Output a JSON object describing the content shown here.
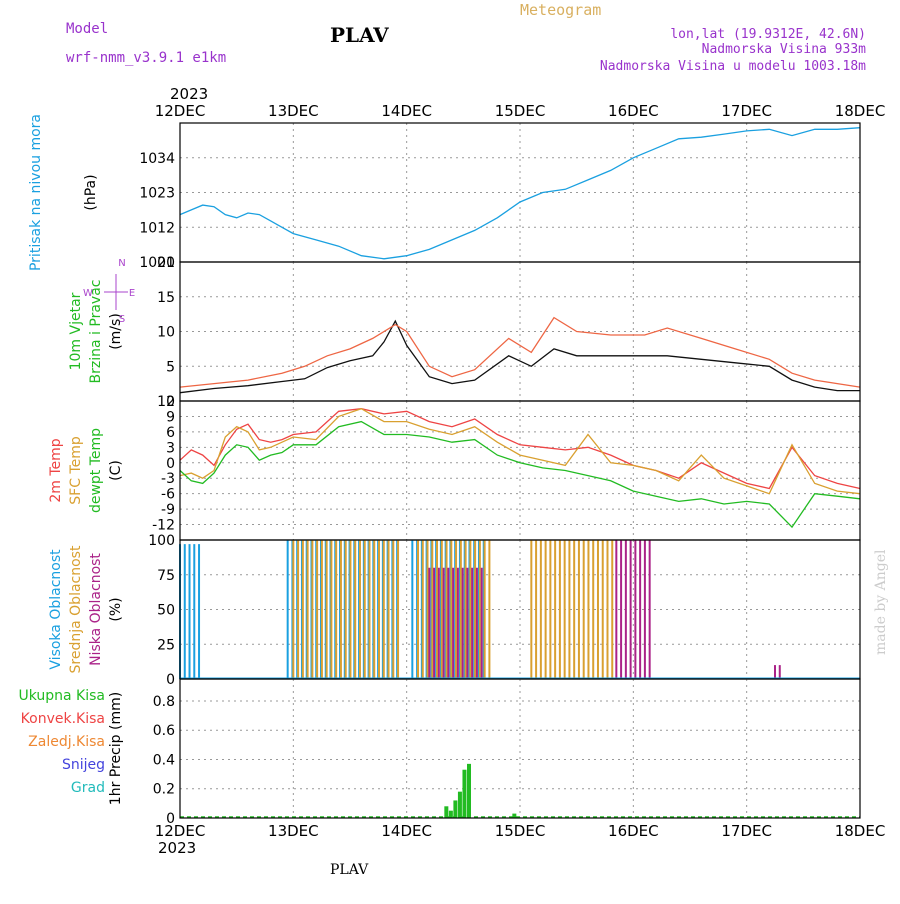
{
  "header": {
    "model_label": "Model",
    "model_name": "wrf-nmm_v3.9.1 e1km",
    "station": "PLAV",
    "meteogram": "Meteogram",
    "lonlat": "lon,lat (19.9312E, 42.6N)",
    "altitude": "Nadmorska Visina 933m",
    "model_altitude": "Nadmorska Visina u modelu 1003.18m",
    "year_top": "2023",
    "year_bottom": "2023",
    "footer_station": "PLAV",
    "credit": "made by Angel"
  },
  "colors": {
    "pressure": "#1aa0e0",
    "wind_lbl": "#22bb22",
    "wind_dir_lbl": "#aa44cc",
    "temp2m": "#ee4444",
    "sfc": "#d9a030",
    "dewpt": "#22bb22",
    "cloud_high": "#1aa0e0",
    "cloud_mid": "#d9a030",
    "cloud_low": "#aa2288",
    "rain_total": "#22bb22",
    "rain_conv": "#ee4444",
    "rain_frz": "#ee8833",
    "snow": "#4444dd",
    "graupel": "#22bbbb",
    "header_purple": "#9933cc",
    "header_tan": "#d9b060",
    "wind_speed": "#111111",
    "wind_gust": "#ee6644"
  },
  "chart_data": {
    "type": "line",
    "x_ticks": [
      "12DEC",
      "13DEC",
      "14DEC",
      "15DEC",
      "16DEC",
      "17DEC",
      "18DEC"
    ],
    "panels": [
      {
        "id": "pressure",
        "ylabel": [
          "Pritisak na nivou mora",
          "(hPa)"
        ],
        "ylim": [
          1001,
          1045
        ],
        "yticks": [
          1001,
          1012,
          1023,
          1034
        ],
        "series": [
          {
            "key": "pressure",
            "x": [
              0,
              0.1,
              0.2,
              0.3,
              0.4,
              0.5,
              0.6,
              0.7,
              0.8,
              0.9,
              1.0,
              1.2,
              1.4,
              1.6,
              1.8,
              2.0,
              2.2,
              2.4,
              2.6,
              2.8,
              3.0,
              3.2,
              3.4,
              3.6,
              3.8,
              4.0,
              4.2,
              4.4,
              4.6,
              4.8,
              5.0,
              5.2,
              5.4,
              5.6,
              5.8,
              6.0
            ],
            "y": [
              1016,
              1017.5,
              1019,
              1018.5,
              1016,
              1015,
              1016.5,
              1016,
              1014,
              1012,
              1010,
              1008,
              1006,
              1003,
              1002,
              1003,
              1005,
              1008,
              1011,
              1015,
              1020,
              1023,
              1024,
              1027,
              1030,
              1034,
              1037,
              1040,
              1040.5,
              1041.5,
              1042.5,
              1043,
              1041,
              1043,
              1043,
              1043.5
            ]
          }
        ]
      },
      {
        "id": "wind",
        "ylabel": [
          "10m Vjetar",
          "Brzina i Pravac",
          "(m/s)"
        ],
        "ylim": [
          0,
          20
        ],
        "yticks": [
          0,
          5,
          10,
          15,
          20
        ],
        "dir_legend": [
          "N",
          "E",
          "W",
          "S"
        ],
        "series": [
          {
            "key": "wind_speed",
            "x": [
              0,
              0.3,
              0.6,
              0.9,
              1.1,
              1.3,
              1.5,
              1.7,
              1.8,
              1.9,
              2.0,
              2.2,
              2.4,
              2.6,
              2.9,
              3.1,
              3.3,
              3.5,
              3.8,
              4.1,
              4.3,
              4.6,
              4.9,
              5.2,
              5.4,
              5.6,
              5.8,
              6.0
            ],
            "y": [
              1.2,
              1.8,
              2.2,
              2.8,
              3.2,
              4.8,
              5.8,
              6.5,
              8.5,
              11.5,
              8.0,
              3.5,
              2.5,
              3.0,
              6.5,
              5.0,
              7.5,
              6.5,
              6.5,
              6.5,
              6.5,
              6.0,
              5.5,
              5.0,
              3.0,
              2.0,
              1.5,
              1.5
            ]
          },
          {
            "key": "wind_gust",
            "x": [
              0,
              0.3,
              0.6,
              0.9,
              1.1,
              1.3,
              1.5,
              1.7,
              1.9,
              2.0,
              2.2,
              2.4,
              2.6,
              2.9,
              3.1,
              3.3,
              3.5,
              3.8,
              4.1,
              4.3,
              4.6,
              4.9,
              5.2,
              5.4,
              5.6,
              5.8,
              6.0
            ],
            "y": [
              2.0,
              2.5,
              3.0,
              4.0,
              5.0,
              6.5,
              7.5,
              9.0,
              11.0,
              10.0,
              5.0,
              3.5,
              4.5,
              9.0,
              7.0,
              12.0,
              10.0,
              9.5,
              9.5,
              10.5,
              9.0,
              7.5,
              6.0,
              4.0,
              3.0,
              2.5,
              2.0
            ]
          }
        ]
      },
      {
        "id": "temperature",
        "ylabel": [
          "2m Temp",
          "SFC Temp",
          "dewpt Temp",
          "(C)"
        ],
        "ylim": [
          -15,
          12
        ],
        "yticks": [
          12,
          9,
          6,
          3,
          0,
          -3,
          -6,
          -9,
          -12
        ],
        "series": [
          {
            "key": "temp2m",
            "x": [
              0,
              0.1,
              0.2,
              0.3,
              0.4,
              0.5,
              0.6,
              0.7,
              0.8,
              0.9,
              1.0,
              1.2,
              1.4,
              1.6,
              1.8,
              2.0,
              2.2,
              2.4,
              2.6,
              2.8,
              3.0,
              3.2,
              3.4,
              3.6,
              3.8,
              4.0,
              4.2,
              4.4,
              4.6,
              4.8,
              5.0,
              5.2,
              5.4,
              5.6,
              5.8,
              6.0
            ],
            "y": [
              0.5,
              2.5,
              1.5,
              -0.5,
              3.5,
              6.5,
              7.5,
              4.5,
              4.0,
              4.5,
              5.5,
              6.0,
              10.0,
              10.5,
              9.5,
              10.0,
              8.0,
              7.0,
              8.5,
              5.5,
              3.5,
              3.0,
              2.5,
              3.0,
              1.5,
              -0.5,
              -1.5,
              -3.0,
              0.0,
              -2.0,
              -4.0,
              -5.0,
              3.0,
              -2.5,
              -4.0,
              -5.0
            ]
          },
          {
            "key": "sfc",
            "x": [
              0,
              0.1,
              0.2,
              0.3,
              0.4,
              0.5,
              0.6,
              0.7,
              0.8,
              0.9,
              1.0,
              1.2,
              1.4,
              1.6,
              1.8,
              2.0,
              2.2,
              2.4,
              2.6,
              2.8,
              3.0,
              3.2,
              3.4,
              3.6,
              3.8,
              4.0,
              4.2,
              4.4,
              4.6,
              4.8,
              5.0,
              5.2,
              5.4,
              5.6,
              5.8,
              6.0
            ],
            "y": [
              -2.5,
              -2.0,
              -3.0,
              -1.5,
              5.0,
              7.0,
              6.0,
              2.5,
              3.0,
              4.0,
              5.0,
              4.5,
              9.0,
              10.5,
              8.0,
              8.0,
              6.5,
              5.5,
              7.0,
              4.0,
              1.5,
              0.5,
              -0.5,
              5.5,
              0.0,
              -0.5,
              -1.5,
              -3.5,
              1.5,
              -3.0,
              -4.5,
              -6.0,
              3.5,
              -4.0,
              -5.5,
              -6.0
            ]
          },
          {
            "key": "dewpt",
            "x": [
              0,
              0.1,
              0.2,
              0.3,
              0.4,
              0.5,
              0.6,
              0.7,
              0.8,
              0.9,
              1.0,
              1.2,
              1.4,
              1.6,
              1.8,
              2.0,
              2.2,
              2.4,
              2.6,
              2.8,
              3.0,
              3.2,
              3.4,
              3.6,
              3.8,
              4.0,
              4.2,
              4.4,
              4.6,
              4.8,
              5.0,
              5.2,
              5.4,
              5.6,
              5.8,
              6.0
            ],
            "y": [
              -1.5,
              -3.5,
              -4.0,
              -2.0,
              1.5,
              3.5,
              3.0,
              0.5,
              1.5,
              2.0,
              3.5,
              3.5,
              7.0,
              8.0,
              5.5,
              5.5,
              5.0,
              4.0,
              4.5,
              1.5,
              0.0,
              -1.0,
              -1.5,
              -2.5,
              -3.5,
              -5.5,
              -6.5,
              -7.5,
              -7.0,
              -8.0,
              -7.5,
              -8.0,
              -12.5,
              -6.0,
              -6.5,
              -7.0
            ]
          }
        ]
      },
      {
        "id": "clouds",
        "ylabel": [
          "Visoka Oblacnost",
          "Srednja Oblacnost",
          "Niska Oblacnost",
          "(%)"
        ],
        "ylim": [
          0,
          100
        ],
        "yticks": [
          0,
          25,
          50,
          75,
          100
        ],
        "bands": [
          {
            "key": "cloud_high",
            "x0": 0.0,
            "x1": 0.2,
            "value": 97
          },
          {
            "key": "cloud_high",
            "x0": 0.95,
            "x1": 1.95,
            "value": 100
          },
          {
            "key": "cloud_high",
            "x0": 2.05,
            "x1": 2.7,
            "value": 100
          },
          {
            "key": "cloud_mid",
            "x0": 1.0,
            "x1": 1.95,
            "value": 100
          },
          {
            "key": "cloud_mid",
            "x0": 2.1,
            "x1": 2.75,
            "value": 100
          },
          {
            "key": "cloud_mid",
            "x0": 3.1,
            "x1": 3.85,
            "value": 100
          },
          {
            "key": "cloud_low",
            "x0": 2.2,
            "x1": 2.7,
            "value": 80
          },
          {
            "key": "cloud_low",
            "x0": 3.85,
            "x1": 4.15,
            "value": 100
          },
          {
            "key": "cloud_low",
            "x0": 5.25,
            "x1": 5.3,
            "value": 10
          }
        ]
      },
      {
        "id": "precip",
        "ylabel": [
          "1hr Precip (mm)"
        ],
        "legend": [
          "Ukupna Kisa",
          "Konvek.Kisa",
          "Zaledj.Kisa",
          "Snijeg",
          "Grad"
        ],
        "ylim": [
          0,
          0.95
        ],
        "yticks": [
          0,
          0.2,
          0.4,
          0.6,
          0.8
        ],
        "bars": {
          "key": "rain_total",
          "x": [
            2.35,
            2.39,
            2.43,
            2.47,
            2.51,
            2.55,
            2.95
          ],
          "y": [
            0.08,
            0.05,
            0.12,
            0.18,
            0.33,
            0.37,
            0.03
          ]
        }
      }
    ]
  }
}
